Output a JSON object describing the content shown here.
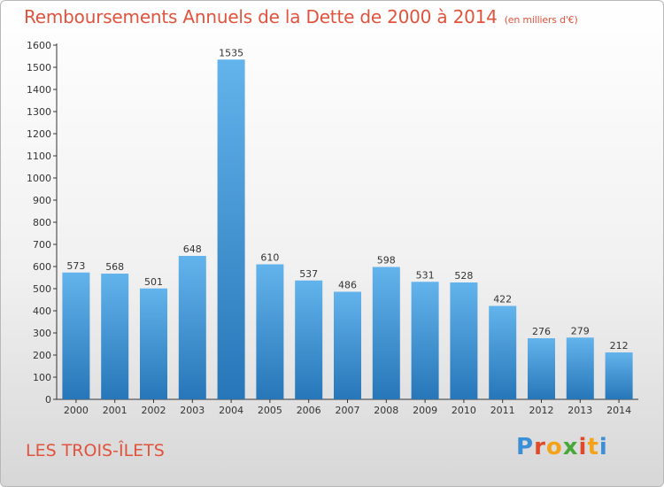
{
  "title": "Remboursements Annuels de la Dette de 2000 à 2014",
  "unit": "(en milliers d'€)",
  "commune": "LES TROIS-ÎLETS",
  "logo": {
    "letters": [
      "P",
      "r",
      "o",
      "x",
      "i",
      "t",
      "i"
    ],
    "colors": [
      "#3b8fd6",
      "#e04a2a",
      "#f2a31a",
      "#47a83a",
      "#e04a2a",
      "#f2a31a",
      "#3b8fd6"
    ]
  },
  "colors": {
    "bar_top": "#63b3ec",
    "bar_bottom": "#2776b8",
    "title": "#e0533d"
  },
  "chart_data": {
    "type": "bar",
    "categories": [
      "2000",
      "2001",
      "2002",
      "2003",
      "2004",
      "2005",
      "2006",
      "2007",
      "2008",
      "2009",
      "2010",
      "2011",
      "2012",
      "2013",
      "2014"
    ],
    "values": [
      573,
      568,
      501,
      648,
      1535,
      610,
      537,
      486,
      598,
      531,
      528,
      422,
      276,
      279,
      212
    ],
    "ylim": [
      0,
      1600
    ],
    "yticks": [
      0,
      100,
      200,
      300,
      400,
      500,
      600,
      700,
      800,
      900,
      1000,
      1100,
      1200,
      1300,
      1400,
      1500,
      1600
    ],
    "grid": false,
    "data_labels": true
  }
}
